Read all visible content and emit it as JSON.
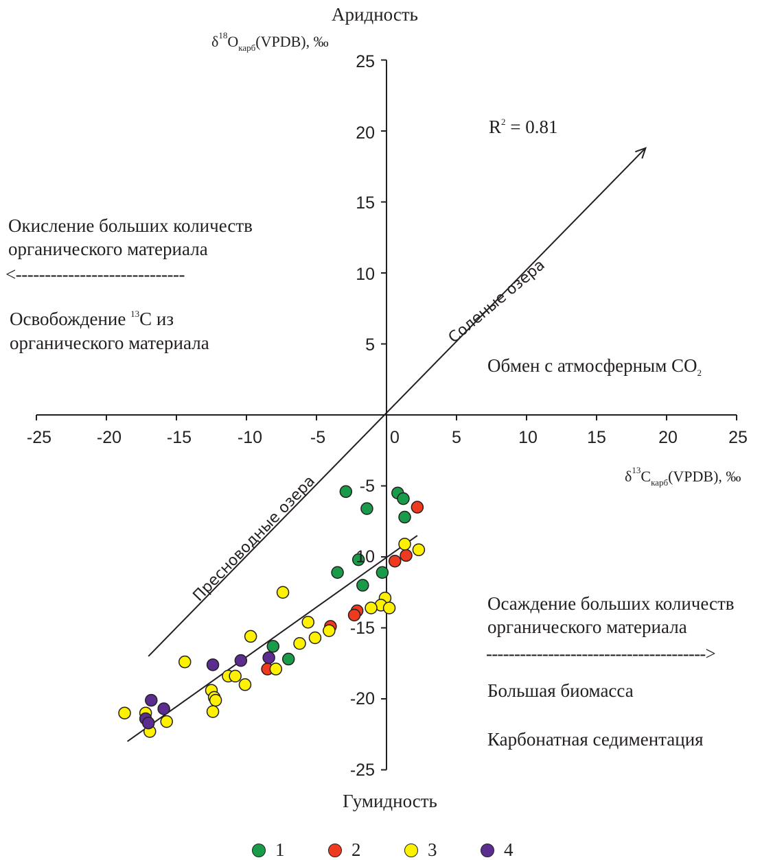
{
  "chart_data": {
    "type": "scatter",
    "title": "",
    "top_label": "Аридность",
    "bottom_label": "Гумидность",
    "xlabel": {
      "pre": "δ",
      "sup": "13",
      "main": "C",
      "sub": "карб",
      "post": "(VPDB), ‰"
    },
    "ylabel": {
      "pre": "δ",
      "sup": "18",
      "main": "O",
      "sub": "карб",
      "post": "(VPDB), ‰"
    },
    "xlim": [
      -25,
      25
    ],
    "ylim": [
      -25,
      25
    ],
    "x_ticks": [
      "-25",
      "-20",
      "-15",
      "-10",
      "-5",
      "0",
      "5",
      "10",
      "15",
      "20",
      "25"
    ],
    "y_ticks": [
      "25",
      "20",
      "15",
      "10",
      "5",
      "-5",
      "10",
      "-15",
      "-20",
      "-25"
    ],
    "r_squared": {
      "prefix": "R",
      "sup": "2",
      "value": " = 0.81"
    },
    "regression": {
      "x1": -18.5,
      "y1": -23,
      "x2": 2.2,
      "y2": -8.5
    },
    "arrows": {
      "saline": {
        "from": [
          -17,
          -17
        ],
        "to": [
          18.5,
          18.8
        ],
        "label": "Соленые озера"
      },
      "freshwater_label": "Пресноводные озера"
    },
    "annotations": {
      "left_top_1": "Окисление  больших количеств",
      "left_top_2": "органического материала",
      "left_dashes": "<-----------------------------",
      "left_mid_1_pre": "Освобождение ",
      "left_mid_1_sup": "13",
      "left_mid_1_post": "С из",
      "left_mid_2": "органического материала",
      "right_exchange_main": "Обмен с атмосферным СО",
      "right_exchange_sub": "2",
      "right_bottom_1": "Осаждение больших количеств",
      "right_bottom_2": "органического материала",
      "right_dashes": "--------------------------------------->",
      "right_biomass": "Большая биомасса",
      "right_carbonate": "Карбонатная седиментация"
    },
    "colors": {
      "1": "#1a9b4a",
      "2": "#ee3a1f",
      "3": "#fff200",
      "4": "#5b2d8e",
      "outline": "#231f20"
    },
    "legend": [
      {
        "label": "1",
        "color": "#1a9b4a"
      },
      {
        "label": "2",
        "color": "#ee3a1f"
      },
      {
        "label": "3",
        "color": "#fff200"
      },
      {
        "label": "4",
        "color": "#5b2d8e"
      }
    ],
    "series": [
      {
        "name": "1",
        "color": "#1a9b4a",
        "points": [
          [
            -2.9,
            -5.4
          ],
          [
            0.8,
            -5.5
          ],
          [
            1.2,
            -5.9
          ],
          [
            -1.4,
            -6.6
          ],
          [
            1.3,
            -7.2
          ],
          [
            -2.0,
            -10.2
          ],
          [
            -3.5,
            -11.1
          ],
          [
            -0.3,
            -11.1
          ],
          [
            -1.7,
            -12.0
          ],
          [
            -8.1,
            -16.3
          ],
          [
            -7.0,
            -17.2
          ]
        ]
      },
      {
        "name": "2",
        "color": "#ee3a1f",
        "points": [
          [
            2.2,
            -6.5
          ],
          [
            1.4,
            -9.9
          ],
          [
            0.6,
            -10.3
          ],
          [
            -2.1,
            -13.8
          ],
          [
            -2.3,
            -14.1
          ],
          [
            -4.0,
            -14.9
          ],
          [
            -8.5,
            -17.9
          ]
        ]
      },
      {
        "name": "3",
        "color": "#fff200",
        "points": [
          [
            1.3,
            -9.1
          ],
          [
            2.3,
            -9.5
          ],
          [
            -7.4,
            -12.5
          ],
          [
            -0.1,
            -12.9
          ],
          [
            -0.4,
            -13.4
          ],
          [
            0.2,
            -13.6
          ],
          [
            -1.1,
            -13.6
          ],
          [
            -5.6,
            -14.6
          ],
          [
            -4.1,
            -15.2
          ],
          [
            -9.7,
            -15.6
          ],
          [
            -5.1,
            -15.7
          ],
          [
            -6.2,
            -16.1
          ],
          [
            -14.4,
            -17.4
          ],
          [
            -7.9,
            -17.9
          ],
          [
            -11.3,
            -18.4
          ],
          [
            -10.8,
            -18.4
          ],
          [
            -10.1,
            -19.0
          ],
          [
            -12.5,
            -19.4
          ],
          [
            -12.3,
            -19.9
          ],
          [
            -12.2,
            -20.1
          ],
          [
            -18.7,
            -21.0
          ],
          [
            -17.2,
            -21.0
          ],
          [
            -15.7,
            -21.6
          ],
          [
            -12.4,
            -20.9
          ],
          [
            -16.9,
            -22.3
          ]
        ]
      },
      {
        "name": "4",
        "color": "#5b2d8e",
        "points": [
          [
            -12.4,
            -17.6
          ],
          [
            -10.4,
            -17.3
          ],
          [
            -8.4,
            -17.1
          ],
          [
            -16.8,
            -20.1
          ],
          [
            -15.9,
            -20.7
          ],
          [
            -17.2,
            -21.4
          ],
          [
            -17.0,
            -21.7
          ]
        ]
      }
    ]
  }
}
